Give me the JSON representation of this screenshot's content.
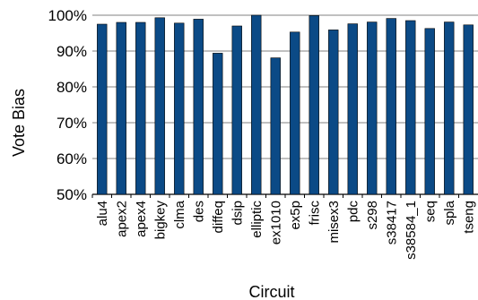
{
  "chart_data": {
    "type": "bar",
    "xlabel": "Circuit",
    "ylabel": "Vote Bias",
    "ylim": [
      50,
      100
    ],
    "yticks": [
      "50%",
      "60%",
      "70%",
      "80%",
      "90%",
      "100%"
    ],
    "grid": true,
    "legend": "none",
    "bar_color": "#0B4A86",
    "categories": [
      "alu4",
      "apex2",
      "apex4",
      "bigkey",
      "clma",
      "des",
      "diffeq",
      "dsip",
      "elliptic",
      "ex1010",
      "ex5p",
      "frisc",
      "misex3",
      "pdc",
      "s298",
      "s38417",
      "s38584_1",
      "seq",
      "spla",
      "tseng"
    ],
    "values": [
      97.5,
      98.0,
      98.0,
      99.3,
      97.8,
      98.9,
      89.4,
      97.0,
      100.0,
      88.1,
      95.3,
      99.9,
      95.9,
      97.6,
      98.1,
      99.1,
      98.5,
      96.3,
      98.1,
      97.3
    ]
  }
}
